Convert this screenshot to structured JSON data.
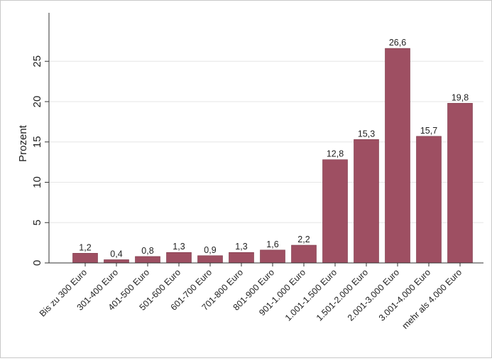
{
  "chart_data": {
    "type": "bar",
    "ylabel": "Prozent",
    "xlabel": "",
    "title": "",
    "ylim": [
      0,
      30
    ],
    "yticks": [
      0,
      5,
      10,
      15,
      20,
      25
    ],
    "grid": true,
    "bar_color": "#9e4f62",
    "categories": [
      "Bis zu 300 Euro",
      "301-400 Euro",
      "401-500 Euro",
      "501-600 Euro",
      "601-700 Euro",
      "701-800 Euro",
      "801-900 Euro",
      "901-1.000 Euro",
      "1.001-1.500 Euro",
      "1.501-2.000 Euro",
      "2.001-3.000 Euro",
      "3.001-4.000 Euro",
      "mehr als 4.000 Euro"
    ],
    "values": [
      1.2,
      0.4,
      0.8,
      1.3,
      0.9,
      1.3,
      1.6,
      2.2,
      12.8,
      15.3,
      26.6,
      15.7,
      19.8
    ],
    "value_labels": [
      "1,2",
      "0,4",
      "0,8",
      "1,3",
      "0,9",
      "1,3",
      "1,6",
      "2,2",
      "12,8",
      "15,3",
      "26,6",
      "15,7",
      "19,8"
    ]
  }
}
